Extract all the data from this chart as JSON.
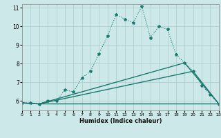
{
  "xlabel": "Humidex (Indice chaleur)",
  "xlim": [
    0,
    23
  ],
  "ylim": [
    5.5,
    11.2
  ],
  "yticks": [
    6,
    7,
    8,
    9,
    10,
    11
  ],
  "xticks": [
    0,
    1,
    2,
    3,
    4,
    5,
    6,
    7,
    8,
    9,
    10,
    11,
    12,
    13,
    14,
    15,
    16,
    17,
    18,
    19,
    20,
    21,
    22,
    23
  ],
  "bg_color": "#cce8e8",
  "line_color": "#1a7a6e",
  "grid_color": "#aacccc",
  "curve1_x": [
    0,
    1,
    2,
    3,
    4,
    5,
    6,
    7,
    8,
    9,
    10,
    11,
    12,
    13,
    14,
    15,
    16,
    17,
    18,
    19,
    20,
    21,
    22,
    23
  ],
  "curve1_y": [
    5.9,
    5.9,
    5.85,
    6.0,
    6.0,
    6.6,
    6.5,
    7.25,
    7.6,
    8.55,
    9.5,
    10.65,
    10.4,
    10.2,
    11.1,
    9.4,
    10.0,
    9.85,
    8.5,
    8.05,
    7.6,
    6.85,
    6.35,
    5.85
  ],
  "curve2_x": [
    0,
    2,
    23
  ],
  "curve2_y": [
    5.9,
    5.85,
    5.85
  ],
  "curve3_x": [
    0,
    2,
    19,
    23
  ],
  "curve3_y": [
    5.9,
    5.85,
    8.05,
    5.85
  ],
  "curve4_x": [
    0,
    2,
    20,
    23
  ],
  "curve4_y": [
    5.9,
    5.85,
    7.6,
    5.85
  ]
}
